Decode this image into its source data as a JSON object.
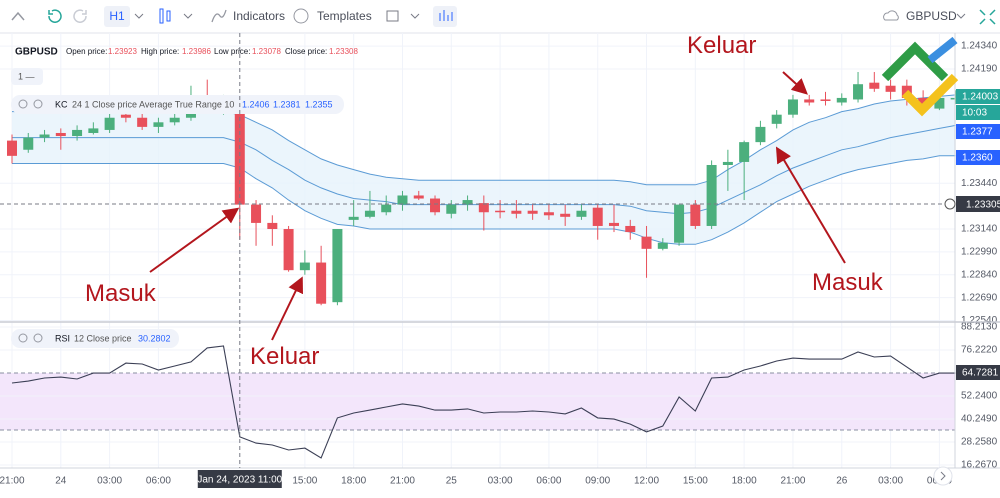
{
  "toolbar": {
    "interval": "H1",
    "indicators": "Indicators",
    "templates": "Templates",
    "symbol": "GBPUSD"
  },
  "legend": {
    "symbol": "GBPUSD",
    "pane": "1 —",
    "open_label": "Open price:",
    "open": 1.23923,
    "high_label": "High price:",
    "high": 1.23986,
    "low_label": "Low price:",
    "low": 1.23078,
    "close_label": "Close price:",
    "close": 1.23308
  },
  "kc_legend": {
    "name": "KC",
    "params": "24 1 Close price Average True Range 10",
    "values": [
      1.2406,
      1.2381,
      1.2355
    ]
  },
  "rsi_legend": {
    "name": "RSI",
    "params": "12 Close price",
    "value": 30.2802
  },
  "crosshair": {
    "time": "Jan 24, 2023 11:00",
    "price": "1.23305"
  },
  "price_badges": [
    {
      "text": "1.24003",
      "color": "#26a69a"
    },
    {
      "text": "10:03",
      "color": "#26a69a"
    },
    {
      "text": "1.2377",
      "color": "#2962ff"
    },
    {
      "text": "1.2360",
      "color": "#2962ff"
    }
  ],
  "rsi_badge": "64.7281",
  "annotations": [
    "Keluar",
    "Masuk",
    "Keluar",
    "Masuk"
  ],
  "chart_data": [
    {
      "type": "candlestick",
      "up_color": "#4caf7d",
      "down_color": "#e8505b",
      "categories": [
        "21:00",
        null,
        null,
        "24",
        null,
        null,
        "03:00",
        null,
        null,
        "06:00",
        null,
        null,
        null,
        null,
        null,
        null,
        null,
        null,
        "15:00",
        null,
        null,
        "18:00",
        null,
        null,
        "21:00",
        null,
        null,
        "25",
        null,
        null,
        "03:00",
        null,
        null,
        "06:00",
        null,
        null,
        "09:00",
        null,
        null,
        "12:00",
        null,
        null,
        "15:00",
        null,
        null,
        "18:00",
        null,
        null,
        "21:00",
        null,
        null,
        "26",
        null,
        null,
        "03:00",
        null,
        null,
        "06:00",
        null
      ],
      "open": [
        1.2372,
        1.2366,
        1.2374,
        1.2377,
        1.2375,
        1.2377,
        1.2379,
        1.2389,
        1.2387,
        1.2381,
        1.2384,
        1.2387,
        1.2395,
        1.2392,
        1.2391,
        1.233,
        1.2318,
        1.2314,
        1.2287,
        1.2292,
        1.2266,
        1.232,
        1.2322,
        1.2325,
        1.233,
        1.2336,
        1.2334,
        1.2324,
        1.233,
        1.2331,
        1.2326,
        1.2326,
        1.2326,
        1.2325,
        1.2324,
        1.2322,
        1.2328,
        1.2318,
        1.2316,
        1.2309,
        1.2301,
        1.2305,
        1.233,
        1.2316,
        1.2356,
        1.2358,
        1.2371,
        1.2383,
        1.2389,
        1.2399,
        1.2399,
        1.2397,
        1.2399,
        1.241,
        1.2408,
        1.2408,
        1.24,
        1.2393,
        1.2399
      ],
      "high": [
        1.2376,
        1.2377,
        1.2379,
        1.238,
        1.2382,
        1.2384,
        1.2391,
        1.2392,
        1.2391,
        1.2387,
        1.2391,
        1.2408,
        1.2412,
        1.2402,
        1.2393,
        1.2333,
        1.2323,
        1.2316,
        1.23,
        1.2303,
        1.2314,
        1.2333,
        1.2339,
        1.2336,
        1.2339,
        1.2339,
        1.2336,
        1.2333,
        1.2336,
        1.2336,
        1.2333,
        1.2333,
        1.233,
        1.233,
        1.233,
        1.233,
        1.233,
        1.233,
        1.232,
        1.2316,
        1.2308,
        1.233,
        1.2333,
        1.2359,
        1.2366,
        1.2372,
        1.2385,
        1.2392,
        1.2402,
        1.2402,
        1.2404,
        1.2403,
        1.2417,
        1.2417,
        1.2412,
        1.2412,
        1.2405,
        1.2406,
        1.2405
      ],
      "low": [
        1.2357,
        1.2364,
        1.2371,
        1.2366,
        1.2372,
        1.2376,
        1.2377,
        1.2384,
        1.2379,
        1.2377,
        1.2382,
        1.2385,
        1.2391,
        1.2389,
        1.2307,
        1.2303,
        1.2303,
        1.2286,
        1.2284,
        1.2264,
        1.2264,
        1.2316,
        1.2321,
        1.2323,
        1.2326,
        1.2333,
        1.2323,
        1.2321,
        1.2326,
        1.2313,
        1.2321,
        1.2321,
        1.232,
        1.232,
        1.2316,
        1.232,
        1.2307,
        1.2312,
        1.2307,
        1.2282,
        1.23,
        1.2303,
        1.2314,
        1.2314,
        1.2339,
        1.2333,
        1.2369,
        1.238,
        1.2387,
        1.2395,
        1.2395,
        1.2395,
        1.2397,
        1.2404,
        1.2399,
        1.2395,
        1.2391,
        1.2392,
        1.2396
      ],
      "close": [
        1.2362,
        1.2374,
        1.2376,
        1.2375,
        1.2379,
        1.238,
        1.2387,
        1.2387,
        1.2381,
        1.2384,
        1.2387,
        1.2393,
        1.2393,
        1.2395,
        1.233,
        1.2318,
        1.2314,
        1.2287,
        1.2292,
        1.2265,
        1.2314,
        1.2322,
        1.2326,
        1.233,
        1.2336,
        1.2334,
        1.2325,
        1.233,
        1.2333,
        1.2325,
        1.2325,
        1.2324,
        1.2324,
        1.2323,
        1.2322,
        1.2326,
        1.2316,
        1.2316,
        1.2312,
        1.2301,
        1.2305,
        1.233,
        1.2316,
        1.2356,
        1.2358,
        1.2371,
        1.2381,
        1.2389,
        1.2399,
        1.2397,
        1.2398,
        1.24,
        1.2409,
        1.2406,
        1.2404,
        1.24,
        1.2393,
        1.24,
        1.24
      ],
      "series": [
        {
          "name": "KC upper",
          "color": "#5b9bd5",
          "values": [
            1.2391,
            1.2391,
            1.2391,
            1.2391,
            1.2391,
            1.2391,
            1.2391,
            1.2391,
            1.2391,
            1.2391,
            1.2391,
            1.2391,
            1.2391,
            1.2391,
            1.2389,
            1.2384,
            1.2379,
            1.2372,
            1.2366,
            1.236,
            1.2356,
            1.2353,
            1.235,
            1.2348,
            1.2347,
            1.2346,
            1.2346,
            1.2346,
            1.2346,
            1.2346,
            1.2346,
            1.2346,
            1.2346,
            1.2346,
            1.2346,
            1.2346,
            1.2346,
            1.2346,
            1.2345,
            1.2343,
            1.2343,
            1.2343,
            1.2343,
            1.2346,
            1.2353,
            1.2359,
            1.2366,
            1.2372,
            1.2379,
            1.2384,
            1.2387,
            1.2391,
            1.2393,
            1.2396,
            1.2398,
            1.2399,
            1.24,
            1.2401,
            1.2402
          ]
        },
        {
          "name": "KC middle",
          "color": "#5b9bd5",
          "values": [
            1.2374,
            1.2374,
            1.2374,
            1.2374,
            1.2374,
            1.2374,
            1.2374,
            1.2374,
            1.2374,
            1.2374,
            1.2374,
            1.2374,
            1.2374,
            1.2374,
            1.2371,
            1.2366,
            1.2359,
            1.2353,
            1.2346,
            1.2341,
            1.2337,
            1.2334,
            1.2333,
            1.2332,
            1.233,
            1.233,
            1.233,
            1.233,
            1.233,
            1.233,
            1.233,
            1.233,
            1.233,
            1.233,
            1.233,
            1.233,
            1.233,
            1.233,
            1.2329,
            1.2326,
            1.2325,
            1.2324,
            1.2325,
            1.2328,
            1.2333,
            1.2338,
            1.2343,
            1.2349,
            1.2354,
            1.2358,
            1.2362,
            1.2366,
            1.2368,
            1.2371,
            1.2374,
            1.2376,
            1.2378,
            1.238,
            1.2382
          ]
        },
        {
          "name": "KC lower",
          "color": "#5b9bd5",
          "values": [
            1.2357,
            1.2357,
            1.2357,
            1.2357,
            1.2357,
            1.2357,
            1.2357,
            1.2357,
            1.2357,
            1.2357,
            1.2357,
            1.2357,
            1.2357,
            1.2357,
            1.2354,
            1.2347,
            1.2341,
            1.2333,
            1.2326,
            1.2321,
            1.2317,
            1.2316,
            1.2314,
            1.2314,
            1.2314,
            1.2314,
            1.2314,
            1.2314,
            1.2314,
            1.2314,
            1.2314,
            1.2314,
            1.2314,
            1.2314,
            1.2314,
            1.2314,
            1.2314,
            1.2314,
            1.2312,
            1.2308,
            1.2305,
            1.2304,
            1.2304,
            1.2307,
            1.2312,
            1.2318,
            1.2325,
            1.2332,
            1.2337,
            1.2342,
            1.2346,
            1.235,
            1.2353,
            1.2355,
            1.2357,
            1.2359,
            1.236,
            1.2362,
            1.2362
          ]
        }
      ],
      "band_color": "#e6f2fb",
      "ylim": [
        1.2253,
        1.2438
      ],
      "yticks": [
        {
          "value": 1.2434,
          "label": "1.24340"
        },
        {
          "value": 1.2419,
          "label": "1.24190"
        },
        {
          "value": 1.2344,
          "label": "1.23440"
        },
        {
          "value": 1.2314,
          "label": "1.23140"
        },
        {
          "value": 1.2299,
          "label": "1.22990"
        },
        {
          "value": 1.2284,
          "label": "1.22840"
        },
        {
          "value": 1.2269,
          "label": "1.22690"
        },
        {
          "value": 1.2254,
          "label": "1.22540"
        }
      ],
      "grid": true
    },
    {
      "type": "line",
      "color": "#3b3f55",
      "series": [
        {
          "name": "RSI",
          "color": "#3b3f55",
          "values": [
            59.0,
            60.0,
            61.6,
            62.1,
            61.1,
            64.2,
            64.2,
            69.4,
            68.9,
            65.8,
            67.9,
            70.0,
            77.3,
            78.3,
            30.9,
            27.7,
            26.7,
            24.1,
            25.1,
            19.9,
            40.8,
            43.4,
            44.9,
            46.5,
            48.1,
            47.0,
            44.9,
            44.9,
            45.5,
            43.4,
            43.9,
            43.9,
            44.4,
            43.9,
            42.9,
            46.0,
            40.8,
            40.2,
            37.6,
            33.5,
            36.6,
            51.7,
            44.4,
            61.6,
            62.1,
            65.8,
            67.9,
            70.5,
            72.0,
            71.5,
            71.5,
            71.5,
            75.2,
            72.6,
            73.1,
            67.3,
            61.6,
            64.2,
            64.2
          ]
        }
      ],
      "ylim": [
        14.7,
        89.26
      ],
      "yticks": [
        {
          "value": 88.213,
          "label": "88.2130"
        },
        {
          "value": 76.222,
          "label": "76.2220"
        },
        {
          "value": 52.24,
          "label": "52.2400"
        },
        {
          "value": 40.249,
          "label": "40.2490"
        },
        {
          "value": 28.258,
          "label": "28.2580"
        },
        {
          "value": 16.267,
          "label": "16.2670"
        }
      ],
      "grid": true
    }
  ]
}
